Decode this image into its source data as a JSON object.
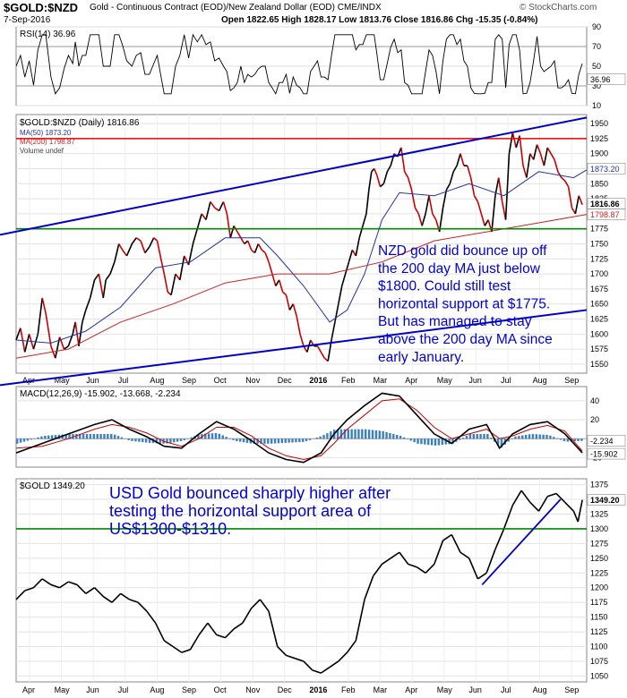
{
  "header": {
    "symbol": "$GOLD:$NZD",
    "description": "Gold - Continuous Contract (EOD)/New Zealand Dollar (EOD) CME/INDX",
    "date": "7-Sep-2016",
    "quote": "Open 1822.65  High 1828.17  Low 1813.76  Close 1816.86  Chg -15.35 (-0.84%)",
    "brand": "© StockCharts.com"
  },
  "colors": {
    "price": "#000000",
    "down": "#cc0000",
    "ma50": "#2233aa",
    "ma200": "#cc2222",
    "support_red": "#ee0000",
    "support_green": "#008800",
    "trend": "#0000cc",
    "annotation": "#0000dd",
    "histogram": "#3a7fbf"
  },
  "rsi": {
    "label": "RSI(14) 36.96",
    "value_tag": "36.96",
    "levels": [
      90,
      70,
      50,
      30,
      10
    ],
    "ylim": [
      10,
      90
    ]
  },
  "chart_data": [
    {
      "type": "line",
      "title": "$GOLD:$NZD (Daily) 1816.86",
      "legend": [
        "MA(50) 1873.20",
        "MA(200) 1798.87",
        "Volume undef"
      ],
      "ylim": [
        1535,
        1965
      ],
      "yticks": [
        1950,
        1925,
        1900,
        1875,
        1850,
        1825,
        1800,
        1775,
        1750,
        1725,
        1700,
        1675,
        1650,
        1625,
        1600,
        1575,
        1550
      ],
      "xticks": [
        "Apr",
        "May",
        "Jun",
        "Jul",
        "Aug",
        "Sep",
        "Oct",
        "Nov",
        "Dec",
        "2016",
        "Feb",
        "Mar",
        "Apr",
        "May",
        "Jun",
        "Jul",
        "Aug",
        "Sep"
      ],
      "last_value_tags": [
        "1873.20",
        "1816.86",
        "1798.87"
      ],
      "horizontal_lines": [
        {
          "value": 1925,
          "color": "red"
        },
        {
          "value": 1775,
          "color": "green"
        }
      ],
      "annotation": [
        "NZD gold did bounce up off",
        "the 200 day MA just below",
        "$1800. Could still test",
        "horizontal support at $1775.",
        "But has managed to stay",
        "above the 200 day MA since",
        "early January."
      ],
      "price_points": [
        [
          0,
          1590
        ],
        [
          5,
          1610
        ],
        [
          10,
          1570
        ],
        [
          15,
          1600
        ],
        [
          20,
          1575
        ],
        [
          25,
          1600
        ],
        [
          30,
          1660
        ],
        [
          34,
          1635
        ],
        [
          40,
          1580
        ],
        [
          45,
          1560
        ],
        [
          50,
          1595
        ],
        [
          55,
          1575
        ],
        [
          60,
          1580
        ],
        [
          65,
          1600
        ],
        [
          68,
          1620
        ],
        [
          72,
          1580
        ],
        [
          76,
          1620
        ],
        [
          80,
          1640
        ],
        [
          85,
          1660
        ],
        [
          90,
          1690
        ],
        [
          95,
          1700
        ],
        [
          100,
          1660
        ],
        [
          103,
          1690
        ],
        [
          108,
          1700
        ],
        [
          113,
          1720
        ],
        [
          118,
          1750
        ],
        [
          122,
          1740
        ],
        [
          127,
          1730
        ],
        [
          133,
          1750
        ],
        [
          138,
          1760
        ],
        [
          143,
          1755
        ],
        [
          148,
          1735
        ],
        [
          153,
          1745
        ],
        [
          158,
          1760
        ],
        [
          162,
          1755
        ],
        [
          167,
          1720
        ],
        [
          170,
          1700
        ],
        [
          174,
          1670
        ],
        [
          178,
          1665
        ],
        [
          183,
          1700
        ],
        [
          188,
          1690
        ],
        [
          193,
          1730
        ],
        [
          198,
          1715
        ],
        [
          203,
          1750
        ],
        [
          208,
          1775
        ],
        [
          213,
          1800
        ],
        [
          218,
          1790
        ],
        [
          223,
          1820
        ],
        [
          228,
          1810
        ],
        [
          233,
          1805
        ],
        [
          238,
          1820
        ],
        [
          242,
          1800
        ],
        [
          246,
          1760
        ],
        [
          250,
          1780
        ],
        [
          254,
          1770
        ],
        [
          258,
          1760
        ],
        [
          262,
          1750
        ],
        [
          266,
          1755
        ],
        [
          270,
          1740
        ],
        [
          274,
          1735
        ],
        [
          278,
          1750
        ],
        [
          282,
          1740
        ],
        [
          286,
          1735
        ],
        [
          290,
          1720
        ],
        [
          294,
          1700
        ],
        [
          298,
          1680
        ],
        [
          302,
          1690
        ],
        [
          306,
          1670
        ],
        [
          310,
          1665
        ],
        [
          314,
          1640
        ],
        [
          318,
          1650
        ],
        [
          322,
          1630
        ],
        [
          326,
          1600
        ],
        [
          330,
          1580
        ],
        [
          334,
          1570
        ],
        [
          338,
          1590
        ],
        [
          342,
          1580
        ],
        [
          346,
          1580
        ],
        [
          350,
          1570
        ],
        [
          354,
          1560
        ],
        [
          358,
          1555
        ],
        [
          362,
          1590
        ],
        [
          366,
          1620
        ],
        [
          370,
          1650
        ],
        [
          374,
          1680
        ],
        [
          378,
          1700
        ],
        [
          382,
          1720
        ],
        [
          386,
          1740
        ],
        [
          390,
          1730
        ],
        [
          394,
          1760
        ],
        [
          398,
          1780
        ],
        [
          402,
          1800
        ],
        [
          405,
          1840
        ],
        [
          408,
          1870
        ],
        [
          411,
          1875
        ],
        [
          414,
          1865
        ],
        [
          418,
          1845
        ],
        [
          422,
          1850
        ],
        [
          426,
          1870
        ],
        [
          430,
          1880
        ],
        [
          434,
          1900
        ],
        [
          438,
          1895
        ],
        [
          442,
          1910
        ],
        [
          446,
          1870
        ],
        [
          450,
          1860
        ],
        [
          454,
          1840
        ],
        [
          458,
          1810
        ],
        [
          462,
          1800
        ],
        [
          466,
          1780
        ],
        [
          470,
          1800
        ],
        [
          474,
          1830
        ],
        [
          478,
          1800
        ],
        [
          482,
          1790
        ],
        [
          486,
          1770
        ],
        [
          490,
          1810
        ],
        [
          494,
          1840
        ],
        [
          498,
          1850
        ],
        [
          502,
          1870
        ],
        [
          506,
          1880
        ],
        [
          510,
          1900
        ],
        [
          514,
          1880
        ],
        [
          518,
          1880
        ],
        [
          522,
          1860
        ],
        [
          526,
          1830
        ],
        [
          530,
          1820
        ],
        [
          534,
          1800
        ],
        [
          538,
          1780
        ],
        [
          542,
          1790
        ],
        [
          546,
          1770
        ],
        [
          550,
          1830
        ],
        [
          554,
          1860
        ],
        [
          558,
          1820
        ],
        [
          562,
          1790
        ],
        [
          566,
          1900
        ],
        [
          570,
          1935
        ],
        [
          574,
          1910
        ],
        [
          578,
          1930
        ],
        [
          582,
          1880
        ],
        [
          586,
          1860
        ],
        [
          590,
          1900
        ],
        [
          594,
          1890
        ],
        [
          598,
          1915
        ],
        [
          602,
          1900
        ],
        [
          606,
          1880
        ],
        [
          610,
          1910
        ],
        [
          614,
          1900
        ],
        [
          618,
          1890
        ],
        [
          622,
          1870
        ],
        [
          626,
          1860
        ],
        [
          630,
          1855
        ],
        [
          634,
          1845
        ],
        [
          638,
          1810
        ],
        [
          642,
          1800
        ],
        [
          646,
          1830
        ],
        [
          650,
          1815
        ]
      ],
      "ma50_points": [
        [
          0,
          1590
        ],
        [
          40,
          1585
        ],
        [
          80,
          1605
        ],
        [
          120,
          1645
        ],
        [
          160,
          1710
        ],
        [
          200,
          1720
        ],
        [
          240,
          1760
        ],
        [
          280,
          1760
        ],
        [
          300,
          1730
        ],
        [
          330,
          1680
        ],
        [
          360,
          1620
        ],
        [
          380,
          1640
        ],
        [
          400,
          1700
        ],
        [
          420,
          1790
        ],
        [
          440,
          1835
        ],
        [
          480,
          1830
        ],
        [
          520,
          1850
        ],
        [
          560,
          1830
        ],
        [
          600,
          1870
        ],
        [
          640,
          1860
        ],
        [
          655,
          1873
        ]
      ],
      "ma200_points": [
        [
          0,
          1560
        ],
        [
          60,
          1575
        ],
        [
          120,
          1620
        ],
        [
          180,
          1650
        ],
        [
          240,
          1685
        ],
        [
          300,
          1700
        ],
        [
          360,
          1700
        ],
        [
          420,
          1720
        ],
        [
          480,
          1755
        ],
        [
          540,
          1770
        ],
        [
          600,
          1785
        ],
        [
          655,
          1799
        ]
      ]
    },
    {
      "type": "line",
      "title": "MACD(12,26,9) -15.902, -13.668, -2.234",
      "ylim": [
        -30,
        55
      ],
      "yticks": [
        40,
        20,
        0,
        -20
      ],
      "last_value_tags": [
        "-2.234",
        "-15.902"
      ],
      "macd_points": [
        [
          0,
          -15
        ],
        [
          30,
          -5
        ],
        [
          60,
          5
        ],
        [
          90,
          15
        ],
        [
          110,
          20
        ],
        [
          130,
          10
        ],
        [
          150,
          2
        ],
        [
          170,
          -8
        ],
        [
          190,
          -10
        ],
        [
          210,
          5
        ],
        [
          230,
          18
        ],
        [
          250,
          10
        ],
        [
          270,
          -2
        ],
        [
          290,
          -15
        ],
        [
          310,
          -22
        ],
        [
          330,
          -25
        ],
        [
          350,
          -15
        ],
        [
          365,
          5
        ],
        [
          380,
          20
        ],
        [
          400,
          35
        ],
        [
          420,
          48
        ],
        [
          440,
          45
        ],
        [
          460,
          25
        ],
        [
          480,
          5
        ],
        [
          500,
          -5
        ],
        [
          520,
          10
        ],
        [
          540,
          15
        ],
        [
          555,
          -10
        ],
        [
          570,
          5
        ],
        [
          590,
          15
        ],
        [
          610,
          18
        ],
        [
          630,
          5
        ],
        [
          650,
          -15
        ]
      ],
      "signal_points": [
        [
          0,
          -10
        ],
        [
          30,
          -8
        ],
        [
          60,
          0
        ],
        [
          90,
          10
        ],
        [
          110,
          15
        ],
        [
          130,
          12
        ],
        [
          150,
          6
        ],
        [
          170,
          -3
        ],
        [
          190,
          -8
        ],
        [
          210,
          0
        ],
        [
          230,
          12
        ],
        [
          250,
          12
        ],
        [
          270,
          3
        ],
        [
          290,
          -10
        ],
        [
          310,
          -18
        ],
        [
          330,
          -22
        ],
        [
          350,
          -18
        ],
        [
          365,
          -5
        ],
        [
          380,
          10
        ],
        [
          400,
          25
        ],
        [
          420,
          40
        ],
        [
          440,
          42
        ],
        [
          460,
          30
        ],
        [
          480,
          12
        ],
        [
          500,
          0
        ],
        [
          520,
          5
        ],
        [
          540,
          10
        ],
        [
          555,
          0
        ],
        [
          570,
          3
        ],
        [
          590,
          10
        ],
        [
          610,
          14
        ],
        [
          630,
          8
        ],
        [
          650,
          -13
        ]
      ]
    },
    {
      "type": "line",
      "title": "$GOLD 1349.20",
      "ylim": [
        1040,
        1385
      ],
      "yticks": [
        1375,
        1350,
        1325,
        1300,
        1275,
        1250,
        1225,
        1200,
        1175,
        1150,
        1125,
        1100,
        1075,
        1050
      ],
      "xticks": [
        "Apr",
        "May",
        "Jun",
        "Jul",
        "Aug",
        "Sep",
        "Oct",
        "Nov",
        "Dec",
        "2016",
        "Feb",
        "Mar",
        "Apr",
        "May",
        "Jun",
        "Jul",
        "Aug",
        "Sep"
      ],
      "last_value_tags": [
        "1349.20"
      ],
      "horizontal_lines": [
        {
          "value": 1300,
          "color": "green"
        }
      ],
      "annotation": [
        "USD Gold bounced sharply higher after",
        "testing the horizontal support area of",
        "US$1300-$1310."
      ],
      "price_points": [
        [
          0,
          1180
        ],
        [
          10,
          1195
        ],
        [
          20,
          1200
        ],
        [
          30,
          1215
        ],
        [
          40,
          1205
        ],
        [
          50,
          1200
        ],
        [
          60,
          1210
        ],
        [
          70,
          1205
        ],
        [
          80,
          1190
        ],
        [
          90,
          1200
        ],
        [
          100,
          1185
        ],
        [
          110,
          1175
        ],
        [
          120,
          1190
        ],
        [
          130,
          1180
        ],
        [
          140,
          1175
        ],
        [
          150,
          1160
        ],
        [
          160,
          1140
        ],
        [
          170,
          1110
        ],
        [
          180,
          1100
        ],
        [
          190,
          1090
        ],
        [
          200,
          1095
        ],
        [
          210,
          1120
        ],
        [
          220,
          1140
        ],
        [
          230,
          1120
        ],
        [
          240,
          1115
        ],
        [
          250,
          1130
        ],
        [
          260,
          1140
        ],
        [
          270,
          1165
        ],
        [
          280,
          1180
        ],
        [
          290,
          1160
        ],
        [
          300,
          1100
        ],
        [
          310,
          1085
        ],
        [
          320,
          1080
        ],
        [
          330,
          1075
        ],
        [
          340,
          1060
        ],
        [
          350,
          1055
        ],
        [
          360,
          1065
        ],
        [
          370,
          1075
        ],
        [
          380,
          1090
        ],
        [
          390,
          1110
        ],
        [
          400,
          1180
        ],
        [
          410,
          1220
        ],
        [
          420,
          1240
        ],
        [
          430,
          1250
        ],
        [
          440,
          1260
        ],
        [
          450,
          1240
        ],
        [
          460,
          1235
        ],
        [
          470,
          1225
        ],
        [
          480,
          1240
        ],
        [
          490,
          1280
        ],
        [
          500,
          1290
        ],
        [
          510,
          1260
        ],
        [
          520,
          1250
        ],
        [
          530,
          1215
        ],
        [
          540,
          1225
        ],
        [
          550,
          1265
        ],
        [
          560,
          1300
        ],
        [
          570,
          1340
        ],
        [
          580,
          1365
        ],
        [
          590,
          1345
        ],
        [
          600,
          1330
        ],
        [
          610,
          1355
        ],
        [
          620,
          1360
        ],
        [
          630,
          1345
        ],
        [
          640,
          1330
        ],
        [
          645,
          1312
        ],
        [
          650,
          1349
        ]
      ],
      "trend_line": [
        [
          535,
          1205
        ],
        [
          625,
          1350
        ]
      ]
    }
  ]
}
